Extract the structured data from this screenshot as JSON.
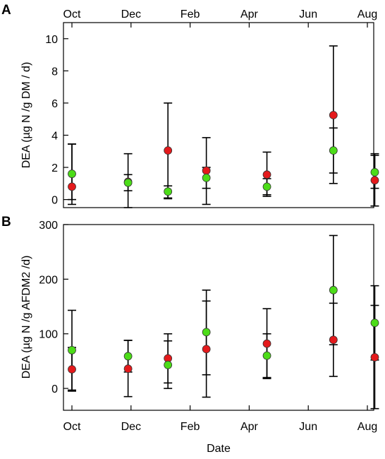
{
  "chart_data": [
    {
      "panel_label": "A",
      "type": "scatter",
      "xlabel": "",
      "ylabel": "DEA (µg N /g DM / d)",
      "ylim": [
        -0.5,
        11
      ],
      "yticks": [
        0,
        2,
        4,
        6,
        8,
        10
      ],
      "x_tick_labels": [
        "Oct",
        "Dec",
        "Feb",
        "Apr",
        "Jun",
        "Aug"
      ],
      "x_tick_labels_position": "top",
      "colors": {
        "red": "#e41a1c",
        "green": "#4cdc18"
      },
      "series": [
        {
          "color_key": "red",
          "points": [
            {
              "x": 0,
              "y": 0.8,
              "lo": -0.3,
              "hi": 3.45
            },
            {
              "x": 1.9,
              "y": 1.1,
              "lo": -0.5,
              "hi": 2.85
            },
            {
              "x": 3.25,
              "y": 3.05,
              "lo": 0.1,
              "hi": 6.0
            },
            {
              "x": 4.55,
              "y": 1.8,
              "lo": -0.3,
              "hi": 3.85
            },
            {
              "x": 6.6,
              "y": 1.55,
              "lo": 0.2,
              "hi": 2.95
            },
            {
              "x": 8.85,
              "y": 5.25,
              "lo": 1.0,
              "hi": 9.55
            },
            {
              "x": 10.25,
              "y": 1.2,
              "lo": -0.4,
              "hi": 2.85
            }
          ]
        },
        {
          "color_key": "green",
          "points": [
            {
              "x": 0,
              "y": 1.6,
              "lo": 0.0,
              "hi": 3.45
            },
            {
              "x": 1.9,
              "y": 1.05,
              "lo": 0.55,
              "hi": 1.55
            },
            {
              "x": 3.25,
              "y": 0.5,
              "lo": 0.05,
              "hi": 0.85
            },
            {
              "x": 4.55,
              "y": 1.35,
              "lo": 0.7,
              "hi": 2.0
            },
            {
              "x": 6.6,
              "y": 0.8,
              "lo": 0.3,
              "hi": 1.3
            },
            {
              "x": 8.85,
              "y": 3.05,
              "lo": 1.65,
              "hi": 4.45
            },
            {
              "x": 10.25,
              "y": 1.7,
              "lo": 0.7,
              "hi": 2.75
            }
          ]
        }
      ]
    },
    {
      "panel_label": "B",
      "type": "scatter",
      "xlabel": "Date",
      "ylabel": "DEA (µg N /g AFDM2 /d)",
      "ylim": [
        -40,
        300
      ],
      "yticks": [
        0,
        100,
        200,
        300
      ],
      "x_tick_labels": [
        "Oct",
        "Dec",
        "Feb",
        "Apr",
        "Jun",
        "Aug"
      ],
      "x_tick_labels_position": "bottom",
      "colors": {
        "red": "#e41a1c",
        "green": "#4cdc18"
      },
      "series": [
        {
          "color_key": "red",
          "points": [
            {
              "x": 0,
              "y": 35,
              "lo": -5,
              "hi": 75
            },
            {
              "x": 1.9,
              "y": 36,
              "lo": -15,
              "hi": 88
            },
            {
              "x": 3.25,
              "y": 55,
              "lo": 10,
              "hi": 100
            },
            {
              "x": 4.55,
              "y": 72,
              "lo": -16,
              "hi": 160
            },
            {
              "x": 6.6,
              "y": 82,
              "lo": 18,
              "hi": 146
            },
            {
              "x": 8.85,
              "y": 89,
              "lo": 22,
              "hi": 156
            },
            {
              "x": 10.25,
              "y": 57,
              "lo": -37,
              "hi": 152
            }
          ]
        },
        {
          "color_key": "green",
          "points": [
            {
              "x": 0,
              "y": 70,
              "lo": -3,
              "hi": 143
            },
            {
              "x": 1.9,
              "y": 59,
              "lo": 30,
              "hi": 88
            },
            {
              "x": 3.25,
              "y": 43,
              "lo": 0,
              "hi": 87
            },
            {
              "x": 4.55,
              "y": 103,
              "lo": 25,
              "hi": 180
            },
            {
              "x": 6.6,
              "y": 60,
              "lo": 20,
              "hi": 100
            },
            {
              "x": 8.85,
              "y": 180,
              "lo": 80,
              "hi": 280
            },
            {
              "x": 10.25,
              "y": 120,
              "lo": 52,
              "hi": 188
            }
          ]
        }
      ]
    }
  ]
}
